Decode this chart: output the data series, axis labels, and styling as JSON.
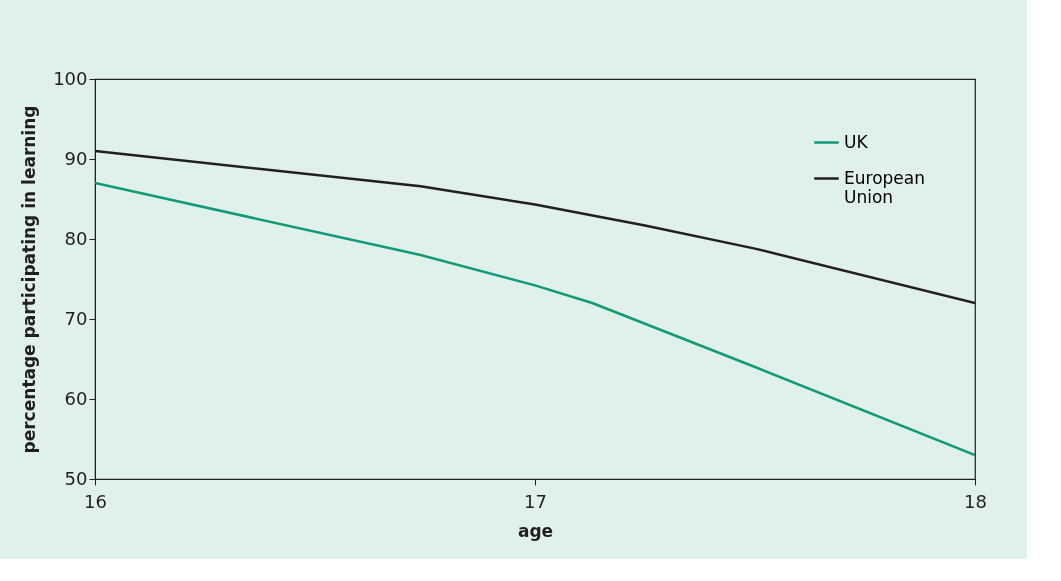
{
  "chart_data": {
    "type": "line",
    "xlabel": "age",
    "ylabel": "percentage participating in learning",
    "xlim": [
      16,
      18
    ],
    "xticks": [
      16,
      17,
      18
    ],
    "ylim": [
      50,
      100
    ],
    "yticks": [
      50,
      60,
      70,
      80,
      90,
      100
    ],
    "grid": false,
    "legend": "top right",
    "marker": "none",
    "line_style": "solid",
    "series": [
      {
        "name": "UK",
        "color": "#119a7a",
        "x": [
          16,
          16.74,
          17,
          17.13,
          17.5,
          18
        ],
        "values": [
          87,
          78,
          74.2,
          72,
          64,
          53
        ]
      },
      {
        "name": "European Union",
        "color": "#231f20",
        "x": [
          16,
          16.74,
          17,
          17.25,
          17.5,
          18
        ],
        "values": [
          91,
          86.6,
          84.3,
          81.7,
          78.8,
          72
        ]
      }
    ]
  }
}
